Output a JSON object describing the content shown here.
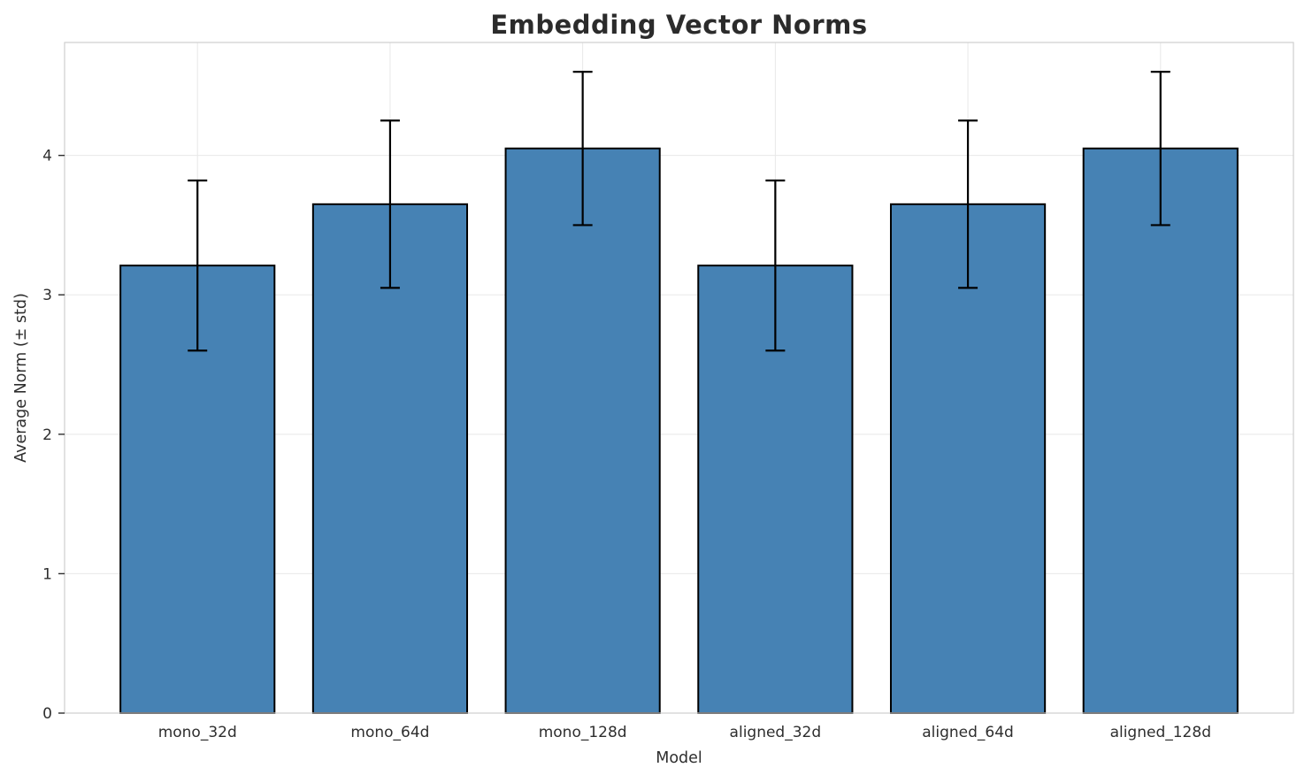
{
  "chart_data": {
    "type": "bar",
    "title": "Embedding Vector Norms",
    "xlabel": "Model",
    "ylabel": "Average Norm (± std)",
    "categories": [
      "mono_32d",
      "mono_64d",
      "mono_128d",
      "aligned_32d",
      "aligned_64d",
      "aligned_128d"
    ],
    "values": [
      3.21,
      3.65,
      4.05,
      3.21,
      3.65,
      4.05
    ],
    "errors": [
      0.61,
      0.6,
      0.55,
      0.61,
      0.6,
      0.55
    ],
    "ylim": [
      0,
      4.81
    ],
    "yticks": [
      0,
      1,
      2,
      3,
      4
    ],
    "grid": true,
    "legend": "none",
    "bar_color": "#4682b4",
    "bar_edge_color": "#000000",
    "error_color": "#000000",
    "grid_color": "#e8e8e8",
    "spine_color": "#cfcfcf",
    "text_color": "#2e2e2e"
  }
}
